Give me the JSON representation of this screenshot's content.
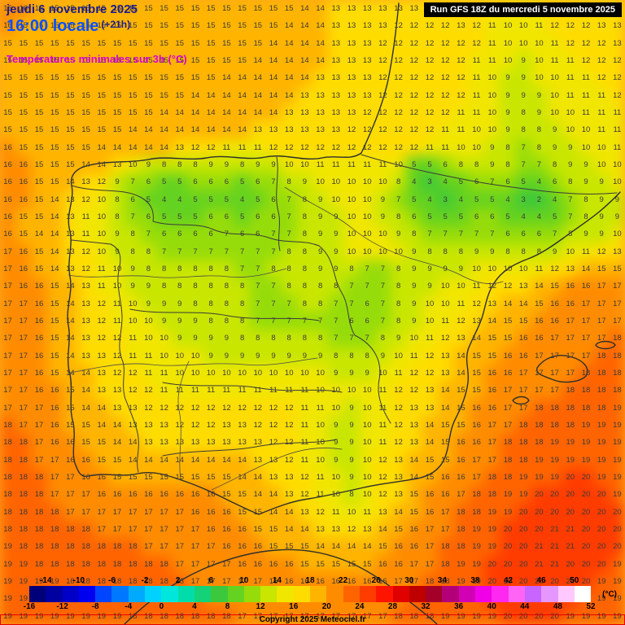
{
  "header": {
    "date": "jeudi 6 novembre 2025",
    "time": "16:00 locale",
    "offset": "(+21h)",
    "subtitle": "Températures minimales sur 3h (°C)",
    "run": "Run GFS 18Z du mercredi 5 novembre 2025"
  },
  "footer": {
    "copyright": "Copyright 2025 Meteociel.fr"
  },
  "colors": {
    "date_text": "#1c1c8f",
    "time_text": "#0a50ff",
    "subtitle_text": "#d800d8",
    "number_text": "#3a3a3a",
    "outline": "#2e2e2e",
    "run_bg": "#000000",
    "run_fg": "#ffffff",
    "frame": "#e40000"
  },
  "scale": {
    "unit": "(°C)",
    "min": -16,
    "max": 52,
    "step": 2,
    "top_labels": [
      -14,
      -10,
      -6,
      -2,
      2,
      6,
      10,
      14,
      18,
      22,
      26,
      30,
      34,
      38,
      42,
      46,
      50
    ],
    "bottom_labels": [
      -16,
      -12,
      -8,
      -4,
      0,
      4,
      8,
      12,
      16,
      20,
      24,
      28,
      32,
      36,
      40,
      44,
      48,
      52
    ],
    "cell_colors": [
      "#000078",
      "#0000a0",
      "#0000c8",
      "#0000f0",
      "#0046ff",
      "#0078ff",
      "#00aaff",
      "#00d2ff",
      "#00e6dc",
      "#00dcaa",
      "#14d278",
      "#3cc83c",
      "#64d220",
      "#96dc0a",
      "#c8e600",
      "#f0e600",
      "#ffdc00",
      "#ffb400",
      "#ff8c00",
      "#ff6400",
      "#ff3c00",
      "#ff1400",
      "#e10000",
      "#be0000",
      "#a50028",
      "#b40078",
      "#d200b4",
      "#f000e6",
      "#ff28f0",
      "#ff64f5",
      "#c864ff",
      "#e696ff",
      "#ffc8ff",
      "#ffffff"
    ]
  },
  "map": {
    "cols": 40,
    "rows": 36,
    "values": [
      "16 16 15 15 15 15 15 15 15 15 15 15 15 15 15 15 15 15 15 14 14 13 13 13 13 13 13 12 12 13 13 12 11 10 11 12 12 13 13 13",
      "16 15 15 15 15 15 15 15 15 15 15 15 15 15 15 15 15 15 14 14 14 13 13 13 13 12 12 12 12 13 12 11 10 10 11 12 12 12 13 13",
      "15 15 15 15 15 15 15 15 15 15 15 15 15 15 15 15 15 14 14 14 14 13 13 13 12 12 12 12 12 12 12 11 10 10 10 11 12 12 12 13",
      "15 15 15 15 15 15 15 15 15 15 15 15 15 15 15 15 14 14 14 14 14 13 13 13 12 12 12 12 12 12 11 11 10 9 10 11 11 12 12 12",
      "15 15 15 15 15 15 15 15 15 15 15 15 15 15 14 14 14 14 14 14 13 13 13 13 12 12 12 12 12 12 11 10 9 9 10 10 11 11 12 12",
      "15 15 15 15 15 15 15 15 15 15 15 15 14 14 14 14 14 14 14 13 13 13 13 13 12 12 12 12 12 12 11 10 9 9 9 10 11 11 11 12",
      "15 15 15 15 15 15 15 15 15 15 14 14 14 14 14 14 14 14 13 13 13 13 13 12 12 12 12 12 12 11 11 10 9 8 9 10 10 11 11 11",
      "15 15 15 15 15 15 15 15 14 14 14 14 14 14 14 14 13 13 13 13 13 13 12 12 12 12 12 12 11 11 10 10 9 8 8 9 10 10 11 11",
      "16 15 15 15 15 15 14 14 14 14 14 13 12 12 11 11 11 12 12 12 12 12 12 12 12 12 12 11 11 10 10 9 8 7 8 9 9 10 10 11",
      "16 16 15 15 15 14 14 13 10 9 8 8 8 9 9 8 9 9 10 10 11 11 11 11 11 10 5 5 6 8 8 9 8 7 7 8 9 9 10 10",
      "16 16 15 15 14 13 12 9 7 6 5 5 6 6 6 5 6 7 8 9 10 10 10 10 10 8 4 3 4 5 6 7 6 5 4 6 8 9 9 10",
      "16 16 15 14 13 12 10 8 6 5 4 4 5 5 5 4 5 6 7 8 9 10 10 10 9 7 5 4 3 4 5 5 4 3 2 4 7 8 9 9",
      "16 15 15 14 13 11 10 8 7 6 5 5 5 6 6 5 6 6 7 8 9 9 10 10 9 8 6 5 5 5 6 6 5 4 4 5 7 8 9 9",
      "16 15 14 14 13 11 10 9 8 7 6 6 6 6 7 6 6 7 7 8 9 9 10 10 10 9 8 7 7 7 7 7 6 6 6 7 8 9 9 10",
      "17 16 15 14 13 12 10 9 8 8 7 7 7 7 7 7 7 7 8 8 9 9 10 10 10 10 9 8 8 8 9 9 8 8 8 9 10 11 12 13",
      "17 16 15 14 13 12 11 10 9 8 8 8 8 8 8 7 7 8 8 8 9 9 8 7 7 8 9 9 9 9 10 10 10 10 11 12 13 14 15 15",
      "17 16 16 15 14 13 11 10 9 9 8 8 8 8 8 8 7 7 8 8 8 8 7 7 7 8 9 9 10 10 11 12 12 13 14 15 16 16 17 17",
      "17 17 16 15 14 13 12 11 10 9 9 9 8 8 8 8 7 7 7 8 8 7 7 6 7 8 9 10 10 11 12 13 14 14 15 16 16 17 17 17",
      "17 17 16 15 14 13 12 11 10 10 9 9 9 8 8 8 7 7 7 7 7 7 6 6 7 8 9 10 11 12 13 14 15 15 16 16 17 17 17 17",
      "17 17 16 15 14 13 12 12 11 10 10 9 9 9 9 8 8 8 8 8 8 7 7 7 8 9 10 11 12 13 14 15 15 16 16 17 17 17 17 18",
      "17 17 16 15 14 13 13 12 11 11 10 10 10 9 9 9 9 9 9 9 9 8 8 8 9 10 11 12 13 14 15 15 16 16 17 17 17 17 18 18",
      "17 17 16 15 14 14 13 12 12 11 11 10 10 10 10 10 10 10 10 10 10 9 9 9 10 11 12 12 13 14 15 16 16 17 17 17 17 18 18 18",
      "17 17 16 16 15 14 13 13 12 12 11 11 11 11 11 11 11 11 11 11 10 10 10 10 11 12 12 13 14 15 15 16 17 17 17 17 18 18 18 18",
      "17 17 17 16 15 14 14 13 13 12 12 12 12 12 12 12 12 12 12 11 11 10 9 10 11 12 13 13 14 15 16 16 17 17 18 18 18 18 18 19",
      "18 17 17 16 15 15 14 14 13 13 13 12 12 12 13 13 12 12 12 11 10 9 9 10 11 12 13 14 15 15 16 17 17 18 18 18 18 19 19 19",
      "18 18 17 16 16 15 15 14 14 13 13 13 13 13 13 13 13 12 12 11 10 9 9 10 11 12 13 14 15 16 16 17 18 18 18 19 19 19 19 19",
      "18 18 17 17 16 16 15 15 14 14 14 14 14 14 14 14 13 13 12 11 10 9 9 10 12 13 14 15 15 16 17 17 18 18 19 19 19 19 19 19",
      "18 18 18 17 17 16 16 15 15 15 15 15 15 15 15 14 14 13 13 12 11 10 9 10 12 13 14 15 16 16 17 18 18 19 19 19 20 20 19 19",
      "18 18 18 17 17 17 16 16 16 16 16 16 16 16 15 15 14 14 13 12 11 10 8 10 12 13 15 16 16 17 18 18 19 19 20 20 20 20 20 19",
      "18 18 18 18 17 17 17 17 17 17 17 17 16 16 16 15 15 14 14 13 12 11 10 11 13 14 15 16 17 18 18 19 19 20 20 20 20 20 20 20",
      "18 18 18 18 18 18 17 17 17 17 17 17 17 16 16 16 15 15 14 14 13 13 12 13 14 15 16 17 17 18 19 19 20 20 20 21 21 20 20 20",
      "19 18 18 18 18 18 18 18 18 17 17 17 17 17 16 16 16 15 15 15 14 14 14 14 15 16 16 17 18 18 19 19 20 20 21 21 21 20 20 20",
      "19 19 18 18 18 18 18 18 18 18 18 17 17 17 17 16 16 16 16 15 15 15 15 15 16 16 17 17 18 19 19 20 20 20 21 21 20 20 20 19",
      "19 19 19 19 18 18 18 18 18 18 18 18 17 17 17 17 17 16 16 16 16 16 16 16 16 17 17 18 18 19 19 20 20 20 20 20 20 20 19 19",
      "19 19 19 19 19 19 18 18 18 18 18 18 18 17 17 17 17 17 17 17 17 17 17 17 17 17 18 18 19 19 19 20 20 20 20 20 20 19 19 19",
      "19 19 19 19 19 19 19 19 18 18 18 18 18 18 18 17 17 17 17 17 17 17 17 17 17 18 18 18 19 19 19 19 20 20 20 20 19 19 19 19"
    ]
  }
}
